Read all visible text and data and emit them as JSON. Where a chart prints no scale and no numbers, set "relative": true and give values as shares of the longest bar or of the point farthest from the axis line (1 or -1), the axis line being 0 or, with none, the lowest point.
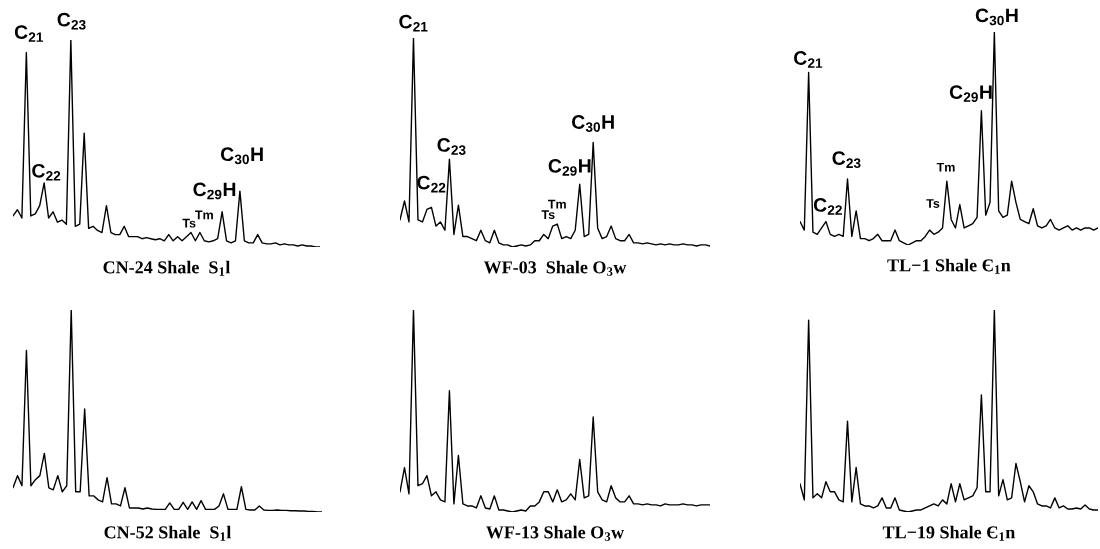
{
  "chart_data": [
    {
      "type": "line",
      "relative": true,
      "title": "CN-24 Shale  S$_{1}$l",
      "color": "#000000",
      "categories": [
        null,
        null,
        null,
        null,
        null,
        null,
        null,
        null,
        null,
        null,
        null,
        null,
        null,
        null,
        null,
        null,
        null,
        null,
        null,
        null,
        null,
        null,
        null,
        null,
        null,
        null,
        null,
        null,
        null,
        null,
        null,
        null,
        null,
        null,
        null,
        null,
        null,
        null,
        null,
        null,
        null,
        null,
        null,
        null,
        null,
        null,
        null,
        null,
        null,
        null,
        null,
        null,
        null,
        null,
        null,
        null,
        null,
        null,
        null,
        null,
        null,
        null,
        null,
        null,
        null,
        null,
        null,
        null,
        null,
        null
      ],
      "values": [
        0.15,
        0.18,
        0.14,
        0.94,
        0.15,
        0.16,
        0.2,
        0.31,
        0.14,
        0.17,
        0.12,
        0.13,
        0.11,
        1.0,
        0.1,
        0.11,
        0.55,
        0.09,
        0.1,
        0.08,
        0.07,
        0.2,
        0.07,
        0.06,
        0.06,
        0.1,
        0.05,
        0.05,
        0.05,
        0.04,
        0.045,
        0.04,
        0.035,
        0.04,
        0.03,
        0.06,
        0.03,
        0.05,
        0.03,
        0.05,
        0.07,
        0.03,
        0.07,
        0.03,
        0.025,
        0.03,
        0.04,
        0.17,
        0.03,
        0.02,
        0.03,
        0.27,
        0.03,
        0.02,
        0.02,
        0.06,
        0.02,
        0.015,
        0.015,
        0.02,
        0.01,
        0.015,
        0.01,
        0.01,
        0.005,
        0.01,
        0.005,
        0.005,
        0.0,
        0.0
      ],
      "annotations": [
        "C$_{21}$",
        "C$_{23}$",
        "C$_{22}$",
        "C$_{30}$H",
        "C$_{29}$H",
        "Tm",
        "Ts"
      ]
    },
    {
      "type": "line",
      "relative": true,
      "title": "WF-03  Shale O$_{3}$w",
      "color": "#000000",
      "categories": [
        null,
        null,
        null,
        null,
        null,
        null,
        null,
        null,
        null,
        null,
        null,
        null,
        null,
        null,
        null,
        null,
        null,
        null,
        null,
        null,
        null,
        null,
        null,
        null,
        null,
        null,
        null,
        null,
        null,
        null,
        null,
        null,
        null,
        null,
        null,
        null,
        null,
        null,
        null,
        null,
        null,
        null,
        null,
        null,
        null,
        null,
        null,
        null,
        null,
        null,
        null,
        null,
        null,
        null,
        null,
        null,
        null,
        null,
        null,
        null,
        null,
        null,
        null,
        null,
        null,
        null,
        null,
        null,
        null,
        null
      ],
      "values": [
        0.13,
        0.22,
        0.12,
        1.0,
        0.13,
        0.12,
        0.18,
        0.19,
        0.1,
        0.12,
        0.08,
        0.42,
        0.06,
        0.2,
        0.05,
        0.05,
        0.04,
        0.03,
        0.08,
        0.03,
        0.02,
        0.08,
        0.02,
        0.01,
        0.01,
        0.0,
        0.005,
        0.01,
        0.005,
        0.01,
        0.03,
        0.03,
        0.06,
        0.04,
        0.1,
        0.11,
        0.04,
        0.05,
        0.04,
        0.08,
        0.3,
        0.05,
        0.06,
        0.5,
        0.09,
        0.04,
        0.05,
        0.1,
        0.04,
        0.03,
        0.03,
        0.06,
        0.02,
        0.02,
        0.015,
        0.02,
        0.015,
        0.01,
        0.015,
        0.01,
        0.015,
        0.01,
        0.01,
        0.015,
        0.01,
        0.01,
        0.005,
        0.01,
        0.01,
        0.005
      ],
      "annotations": [
        "C$_{21}$",
        "C$_{23}$",
        "C$_{22}$",
        "C$_{30}$H",
        "C$_{29}$H",
        "Tm",
        "Ts"
      ]
    },
    {
      "type": "line",
      "relative": true,
      "title": "TL−1 Shale Є$_{1}$n",
      "color": "#000000",
      "categories": [
        null,
        null,
        null,
        null,
        null,
        null,
        null,
        null,
        null,
        null,
        null,
        null,
        null,
        null,
        null,
        null,
        null,
        null,
        null,
        null,
        null,
        null,
        null,
        null,
        null,
        null,
        null,
        null,
        null,
        null,
        null,
        null,
        null,
        null,
        null,
        null,
        null,
        null,
        null,
        null,
        null,
        null,
        null,
        null,
        null,
        null,
        null,
        null,
        null,
        null,
        null,
        null,
        null,
        null,
        null,
        null,
        null,
        null,
        null,
        null,
        null,
        null,
        null,
        null,
        null,
        null,
        null,
        null,
        null,
        null
      ],
      "values": [
        0.11,
        0.07,
        0.81,
        0.06,
        0.05,
        0.08,
        0.11,
        0.05,
        0.04,
        0.05,
        0.04,
        0.31,
        0.04,
        0.16,
        0.03,
        0.03,
        0.02,
        0.03,
        0.05,
        0.02,
        0.02,
        0.02,
        0.07,
        0.02,
        0.01,
        0.0,
        0.01,
        0.02,
        0.02,
        0.04,
        0.07,
        0.05,
        0.06,
        0.08,
        0.3,
        0.12,
        0.08,
        0.19,
        0.08,
        0.09,
        0.1,
        0.13,
        0.63,
        0.14,
        0.2,
        1.0,
        0.16,
        0.13,
        0.14,
        0.3,
        0.2,
        0.12,
        0.11,
        0.1,
        0.17,
        0.09,
        0.08,
        0.09,
        0.12,
        0.08,
        0.07,
        0.08,
        0.09,
        0.07,
        0.08,
        0.07,
        0.08,
        0.08,
        0.07,
        0.08
      ],
      "annotations": [
        "C$_{21}$",
        "C$_{23}$",
        "C$_{22}$",
        "C$_{30}$H",
        "C$_{29}$H",
        "Tm",
        "Ts"
      ]
    },
    {
      "type": "line",
      "relative": true,
      "title": "CN-52 Shale  S$_{1}$l",
      "color": "#000000",
      "categories": [
        null,
        null,
        null,
        null,
        null,
        null,
        null,
        null,
        null,
        null,
        null,
        null,
        null,
        null,
        null,
        null,
        null,
        null,
        null,
        null,
        null,
        null,
        null,
        null,
        null,
        null,
        null,
        null,
        null,
        null,
        null,
        null,
        null,
        null,
        null,
        null,
        null,
        null,
        null,
        null,
        null,
        null,
        null,
        null,
        null,
        null,
        null,
        null,
        null,
        null,
        null,
        null,
        null,
        null,
        null,
        null,
        null,
        null,
        null,
        null,
        null,
        null,
        null,
        null,
        null,
        null,
        null,
        null,
        null,
        null
      ],
      "values": [
        0.12,
        0.18,
        0.13,
        0.8,
        0.13,
        0.16,
        0.18,
        0.29,
        0.12,
        0.11,
        0.18,
        0.1,
        0.13,
        1.0,
        0.1,
        0.1,
        0.51,
        0.08,
        0.08,
        0.06,
        0.05,
        0.17,
        0.04,
        0.04,
        0.03,
        0.12,
        0.02,
        0.02,
        0.02,
        0.015,
        0.02,
        0.015,
        0.013,
        0.013,
        0.013,
        0.045,
        0.013,
        0.013,
        0.048,
        0.013,
        0.05,
        0.013,
        0.056,
        0.013,
        0.013,
        0.013,
        0.03,
        0.09,
        0.013,
        0.013,
        0.013,
        0.125,
        0.013,
        0.01,
        0.01,
        0.03,
        0.01,
        0.008,
        0.008,
        0.01,
        0.008,
        0.008,
        0.006,
        0.006,
        0.005,
        0.005,
        0.003,
        0.003,
        0.0,
        0.0
      ]
    },
    {
      "type": "line",
      "relative": true,
      "title": "WF-13 Shale O$_{3}$w",
      "color": "#000000",
      "categories": [
        null,
        null,
        null,
        null,
        null,
        null,
        null,
        null,
        null,
        null,
        null,
        null,
        null,
        null,
        null,
        null,
        null,
        null,
        null,
        null,
        null,
        null,
        null,
        null,
        null,
        null,
        null,
        null,
        null,
        null,
        null,
        null,
        null,
        null,
        null,
        null,
        null,
        null,
        null,
        null,
        null,
        null,
        null,
        null,
        null,
        null,
        null,
        null,
        null,
        null,
        null,
        null,
        null,
        null,
        null,
        null,
        null,
        null,
        null,
        null,
        null,
        null,
        null,
        null,
        null,
        null,
        null,
        null,
        null,
        null
      ],
      "values": [
        0.1,
        0.22,
        0.09,
        1.0,
        0.13,
        0.14,
        0.18,
        0.08,
        0.1,
        0.06,
        0.05,
        0.6,
        0.04,
        0.28,
        0.04,
        0.03,
        0.03,
        0.02,
        0.08,
        0.02,
        0.015,
        0.08,
        0.01,
        0.01,
        0.005,
        0.0,
        0.005,
        0.01,
        0.005,
        0.03,
        0.03,
        0.05,
        0.1,
        0.1,
        0.05,
        0.11,
        0.05,
        0.06,
        0.09,
        0.06,
        0.26,
        0.07,
        0.08,
        0.47,
        0.1,
        0.06,
        0.05,
        0.13,
        0.07,
        0.05,
        0.05,
        0.08,
        0.04,
        0.04,
        0.035,
        0.04,
        0.035,
        0.035,
        0.03,
        0.04,
        0.035,
        0.035,
        0.035,
        0.04,
        0.035,
        0.035,
        0.03,
        0.035,
        0.035,
        0.035
      ]
    },
    {
      "type": "line",
      "relative": true,
      "title": "TL−19 Shale Є$_{1}$n",
      "color": "#000000",
      "categories": [
        null,
        null,
        null,
        null,
        null,
        null,
        null,
        null,
        null,
        null,
        null,
        null,
        null,
        null,
        null,
        null,
        null,
        null,
        null,
        null,
        null,
        null,
        null,
        null,
        null,
        null,
        null,
        null,
        null,
        null,
        null,
        null,
        null,
        null,
        null,
        null,
        null,
        null,
        null,
        null,
        null,
        null,
        null,
        null,
        null,
        null,
        null,
        null,
        null,
        null,
        null,
        null,
        null,
        null,
        null,
        null,
        null,
        null,
        null,
        null,
        null,
        null,
        null,
        null,
        null,
        null,
        null,
        null,
        null,
        null
      ],
      "values": [
        0.14,
        0.06,
        0.95,
        0.07,
        0.09,
        0.07,
        0.15,
        0.1,
        0.1,
        0.06,
        0.05,
        0.45,
        0.05,
        0.22,
        0.04,
        0.03,
        0.03,
        0.02,
        0.03,
        0.07,
        0.02,
        0.02,
        0.07,
        0.01,
        0.005,
        0.0,
        0.005,
        0.01,
        0.01,
        0.02,
        0.03,
        0.04,
        0.03,
        0.06,
        0.04,
        0.14,
        0.05,
        0.14,
        0.06,
        0.07,
        0.08,
        0.12,
        0.58,
        0.1,
        0.1,
        1.0,
        0.08,
        0.16,
        0.06,
        0.07,
        0.24,
        0.15,
        0.05,
        0.13,
        0.1,
        0.04,
        0.03,
        0.03,
        0.02,
        0.07,
        0.02,
        0.03,
        0.015,
        0.015,
        0.02,
        0.015,
        0.035,
        0.015,
        0.01,
        0.01
      ]
    }
  ]
}
